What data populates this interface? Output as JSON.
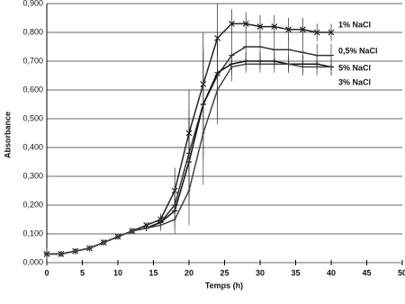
{
  "chart_data": {
    "type": "line",
    "x_label": "Temps (h)",
    "y_label": "Absorbance",
    "x": [
      0,
      2,
      4,
      6,
      8,
      10,
      12,
      14,
      16,
      18,
      20,
      22,
      24,
      26,
      28,
      30,
      32,
      34,
      36,
      38,
      40
    ],
    "series": [
      {
        "name": "1% NaCl",
        "color": "#222222",
        "marker": "x",
        "values": [
          0.03,
          0.03,
          0.04,
          0.05,
          0.07,
          0.09,
          0.11,
          0.13,
          0.15,
          0.25,
          0.45,
          0.62,
          0.78,
          0.83,
          0.83,
          0.82,
          0.82,
          0.81,
          0.81,
          0.8,
          0.8
        ],
        "errors": [
          0.02,
          0.01,
          0.01,
          0.01,
          0.01,
          0.01,
          0.01,
          0.01,
          0.02,
          0.08,
          0.15,
          0.18,
          0.12,
          0.05,
          0.04,
          0.04,
          0.04,
          0.04,
          0.04,
          0.03,
          0.03
        ]
      },
      {
        "name": "0,5% NaCl",
        "color": "#333333",
        "marker": "dash",
        "values": [
          0.03,
          0.03,
          0.04,
          0.05,
          0.07,
          0.09,
          0.11,
          0.12,
          0.14,
          0.2,
          0.38,
          0.55,
          0.65,
          0.72,
          0.75,
          0.75,
          0.74,
          0.74,
          0.73,
          0.72,
          0.72
        ],
        "errors": [
          0.02,
          0.01,
          0.01,
          0.01,
          0.01,
          0.01,
          0.01,
          0.01,
          0.02,
          0.07,
          0.15,
          0.2,
          0.15,
          0.06,
          0.04,
          0.04,
          0.04,
          0.04,
          0.04,
          0.04,
          0.04
        ]
      },
      {
        "name": "5% NaCl",
        "color": "#111111",
        "marker": "plus",
        "values": [
          0.03,
          0.03,
          0.04,
          0.05,
          0.07,
          0.09,
          0.11,
          0.12,
          0.14,
          0.18,
          0.35,
          0.55,
          0.66,
          0.69,
          0.7,
          0.7,
          0.7,
          0.69,
          0.69,
          0.69,
          0.68
        ],
        "errors": [
          0.02,
          0.01,
          0.01,
          0.01,
          0.01,
          0.01,
          0.01,
          0.01,
          0.02,
          0.06,
          0.15,
          0.18,
          0.1,
          0.04,
          0.03,
          0.03,
          0.03,
          0.03,
          0.03,
          0.03,
          0.03
        ]
      },
      {
        "name": "3% NaCl",
        "color": "#444444",
        "marker": "dot",
        "values": [
          0.03,
          0.03,
          0.04,
          0.05,
          0.07,
          0.09,
          0.11,
          0.12,
          0.13,
          0.15,
          0.25,
          0.45,
          0.6,
          0.68,
          0.69,
          0.69,
          0.69,
          0.69,
          0.68,
          0.68,
          0.68
        ],
        "errors": [
          0.02,
          0.01,
          0.01,
          0.01,
          0.01,
          0.01,
          0.01,
          0.01,
          0.02,
          0.05,
          0.12,
          0.18,
          0.12,
          0.05,
          0.03,
          0.03,
          0.03,
          0.03,
          0.03,
          0.03,
          0.03
        ]
      }
    ],
    "xlim": [
      0,
      50
    ],
    "xticks": [
      0,
      5,
      10,
      15,
      20,
      25,
      30,
      35,
      40,
      45,
      50
    ],
    "ylim": [
      0,
      0.9
    ],
    "yticks": [
      {
        "value": 0,
        "label": "0,000"
      },
      {
        "value": 0.1,
        "label": "0,100"
      },
      {
        "value": 0.2,
        "label": "0,200"
      },
      {
        "value": 0.3,
        "label": "0,300"
      },
      {
        "value": 0.4,
        "label": "0,400"
      },
      {
        "value": 0.5,
        "label": "0,500"
      },
      {
        "value": 0.6,
        "label": "0,600"
      },
      {
        "value": 0.7,
        "label": "0,700"
      },
      {
        "value": 0.8,
        "label": "0,800"
      },
      {
        "value": 0.9,
        "label": "0,900"
      }
    ],
    "grid": true
  }
}
